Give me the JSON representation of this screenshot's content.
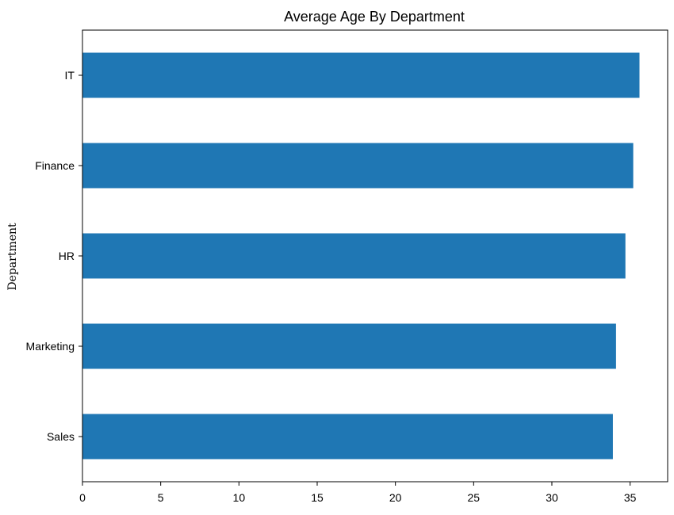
{
  "chart_data": {
    "type": "bar",
    "orientation": "horizontal",
    "title": "Average Age By Department",
    "xlabel": "",
    "ylabel": "Department",
    "categories": [
      "Sales",
      "Marketing",
      "HR",
      "Finance",
      "IT"
    ],
    "values": [
      33.9,
      34.1,
      34.7,
      35.2,
      35.6
    ],
    "xlim": [
      0,
      37.4
    ],
    "xticks": [
      "0",
      "5",
      "10",
      "15",
      "20",
      "25",
      "30",
      "35"
    ],
    "grid": false,
    "legend": "none",
    "bar_color": "#1f77b4"
  }
}
